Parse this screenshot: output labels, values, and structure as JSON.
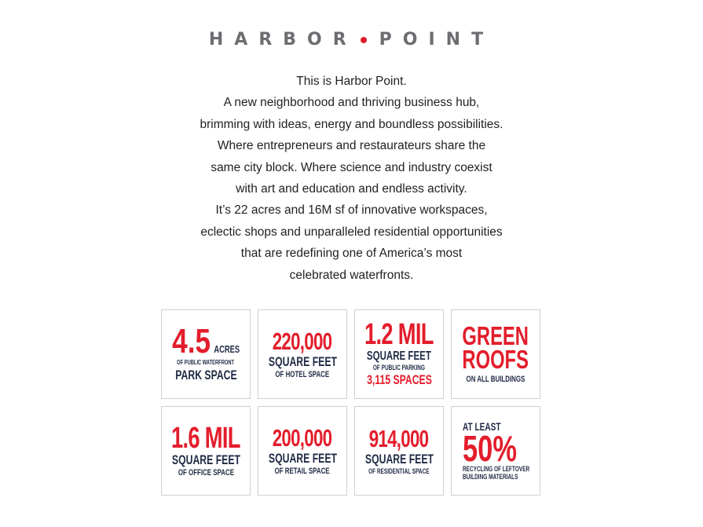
{
  "logo": {
    "word1": "HARBOR",
    "word2": "POINT"
  },
  "intro": {
    "lines": [
      "This is Harbor Point.",
      "A new neighborhood and thriving business hub,",
      "brimming with ideas, energy and boundless possibilities.",
      "Where entrepreneurs and restaurateurs share the",
      "same city block. Where science and industry coexist",
      "with art and education and endless activity.",
      "It’s 22 acres and 16M sf of innovative workspaces,",
      "eclectic shops and unparalleled residential opportunities",
      "that are redefining one of America’s most",
      "celebrated waterfronts."
    ]
  },
  "stats": {
    "park": {
      "value": "4.5",
      "unit": "ACRES",
      "detail": "OF PUBLIC WATERFRONT",
      "label": "PARK SPACE"
    },
    "hotel": {
      "value": "220,000",
      "unit": "SQUARE FEET",
      "detail": "OF HOTEL SPACE"
    },
    "parking": {
      "value": "1.2 MIL",
      "unit": "SQUARE FEET",
      "detail": "OF PUBLIC PARKING",
      "spaces": "3,115 SPACES"
    },
    "roofs": {
      "line1": "GREEN",
      "line2": "ROOFS",
      "detail": "ON ALL BUILDINGS"
    },
    "office": {
      "value": "1.6 MIL",
      "unit": "SQUARE FEET",
      "detail": "OF OFFICE SPACE"
    },
    "retail": {
      "value": "200,000",
      "unit": "SQUARE FEET",
      "detail": "OF RETAIL SPACE"
    },
    "residential": {
      "value": "914,000",
      "unit": "SQUARE FEET",
      "detail": "OF RESIDENTIAL SPACE"
    },
    "recycling": {
      "prefix": "AT LEAST",
      "value": "50%",
      "detail1": "RECYCLING OF LEFTOVER",
      "detail2": "BUILDING MATERIALS"
    }
  },
  "colors": {
    "accent": "#e31d2b",
    "navy": "#1f2a44",
    "logo_gray": "#6b6d70",
    "border": "#cfcfcf"
  }
}
